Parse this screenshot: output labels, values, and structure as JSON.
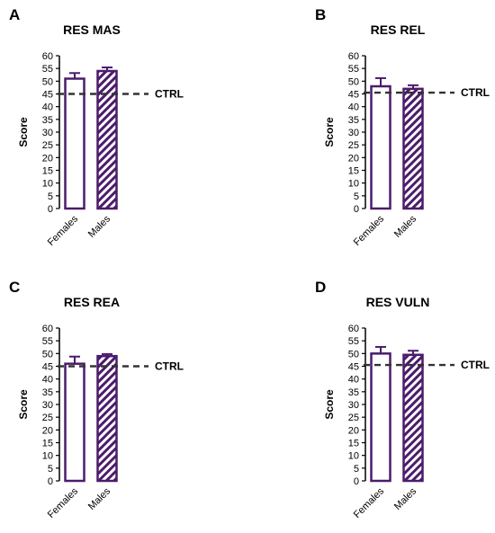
{
  "colors": {
    "bar_outline": "#4b1c6b",
    "reference_line": "#333333",
    "text": "#000000"
  },
  "chart_data": [
    {
      "panel": "A",
      "type": "bar",
      "title": "RES MAS",
      "ylabel": "Score",
      "xlabel": "",
      "categories": [
        "Females",
        "Males"
      ],
      "values": [
        51,
        54
      ],
      "errors": [
        2.2,
        1.4
      ],
      "fill_pattern": [
        "open",
        "hatched"
      ],
      "ylim": [
        0,
        60
      ],
      "yticks": [
        "0",
        "5",
        "10",
        "15",
        "20",
        "25",
        "30",
        "35",
        "40",
        "45",
        "50",
        "55",
        "60"
      ],
      "reference_line": {
        "label": "CTRL",
        "value": 45,
        "style": "dashed"
      },
      "grid": false
    },
    {
      "panel": "B",
      "type": "bar",
      "title": "RES REL",
      "ylabel": "Score",
      "xlabel": "",
      "categories": [
        "Females",
        "Males"
      ],
      "values": [
        48,
        47
      ],
      "errors": [
        3.2,
        1.4
      ],
      "fill_pattern": [
        "open",
        "hatched"
      ],
      "ylim": [
        0,
        60
      ],
      "yticks": [
        "0",
        "5",
        "10",
        "15",
        "20",
        "25",
        "30",
        "35",
        "40",
        "45",
        "50",
        "55",
        "60"
      ],
      "reference_line": {
        "label": "CTRL",
        "value": 45.5,
        "style": "dashed"
      },
      "grid": false
    },
    {
      "panel": "C",
      "type": "bar",
      "title": "RES REA",
      "ylabel": "Score",
      "xlabel": "",
      "categories": [
        "Females",
        "Males"
      ],
      "values": [
        46,
        49
      ],
      "errors": [
        2.8,
        0.8
      ],
      "fill_pattern": [
        "open",
        "hatched"
      ],
      "ylim": [
        0,
        60
      ],
      "yticks": [
        "0",
        "5",
        "10",
        "15",
        "20",
        "25",
        "30",
        "35",
        "40",
        "45",
        "50",
        "55",
        "60"
      ],
      "reference_line": {
        "label": "CTRL",
        "value": 45,
        "style": "dashed"
      },
      "grid": false
    },
    {
      "panel": "D",
      "type": "bar",
      "title": "RES VULN",
      "ylabel": "Score",
      "xlabel": "",
      "categories": [
        "Females",
        "Males"
      ],
      "values": [
        50,
        49.5
      ],
      "errors": [
        2.6,
        1.6
      ],
      "fill_pattern": [
        "open",
        "hatched"
      ],
      "ylim": [
        0,
        60
      ],
      "yticks": [
        "0",
        "5",
        "10",
        "15",
        "20",
        "25",
        "30",
        "35",
        "40",
        "45",
        "50",
        "55",
        "60"
      ],
      "reference_line": {
        "label": "CTRL",
        "value": 45.5,
        "style": "dashed"
      },
      "grid": false
    }
  ]
}
